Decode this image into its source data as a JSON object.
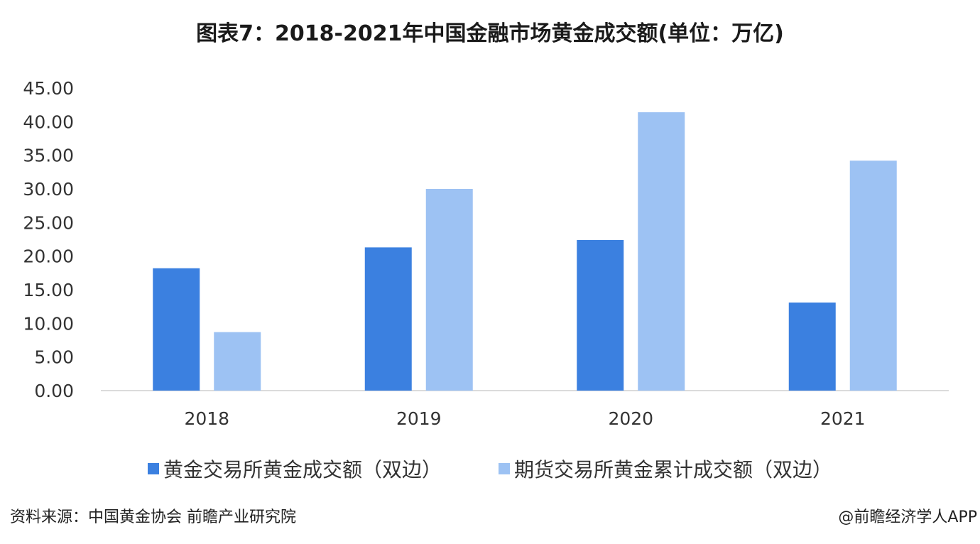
{
  "chart_data": {
    "type": "bar",
    "title": "图表7：2018-2021年中国金融市场黄金成交额(单位：万亿)",
    "categories": [
      "2018",
      "2019",
      "2020",
      "2021"
    ],
    "series": [
      {
        "name": "黄金交易所黄金成交额（双边）",
        "values": [
          18.2,
          21.3,
          22.4,
          13.1
        ],
        "color": "#3b80e0"
      },
      {
        "name": "期货交易所黄金累计成交额（双边）",
        "values": [
          8.7,
          30.0,
          41.4,
          34.2
        ],
        "color": "#9dc2f3"
      }
    ],
    "ylim": [
      0,
      45
    ],
    "yticks": [
      "0.00",
      "5.00",
      "10.00",
      "15.00",
      "20.00",
      "25.00",
      "30.00",
      "35.00",
      "40.00",
      "45.00"
    ],
    "grid": false,
    "legend_placement": "bottom"
  },
  "footer": {
    "source": "资料来源：中国黄金协会 前瞻产业研究院",
    "credit": "@前瞻经济学人APP"
  }
}
